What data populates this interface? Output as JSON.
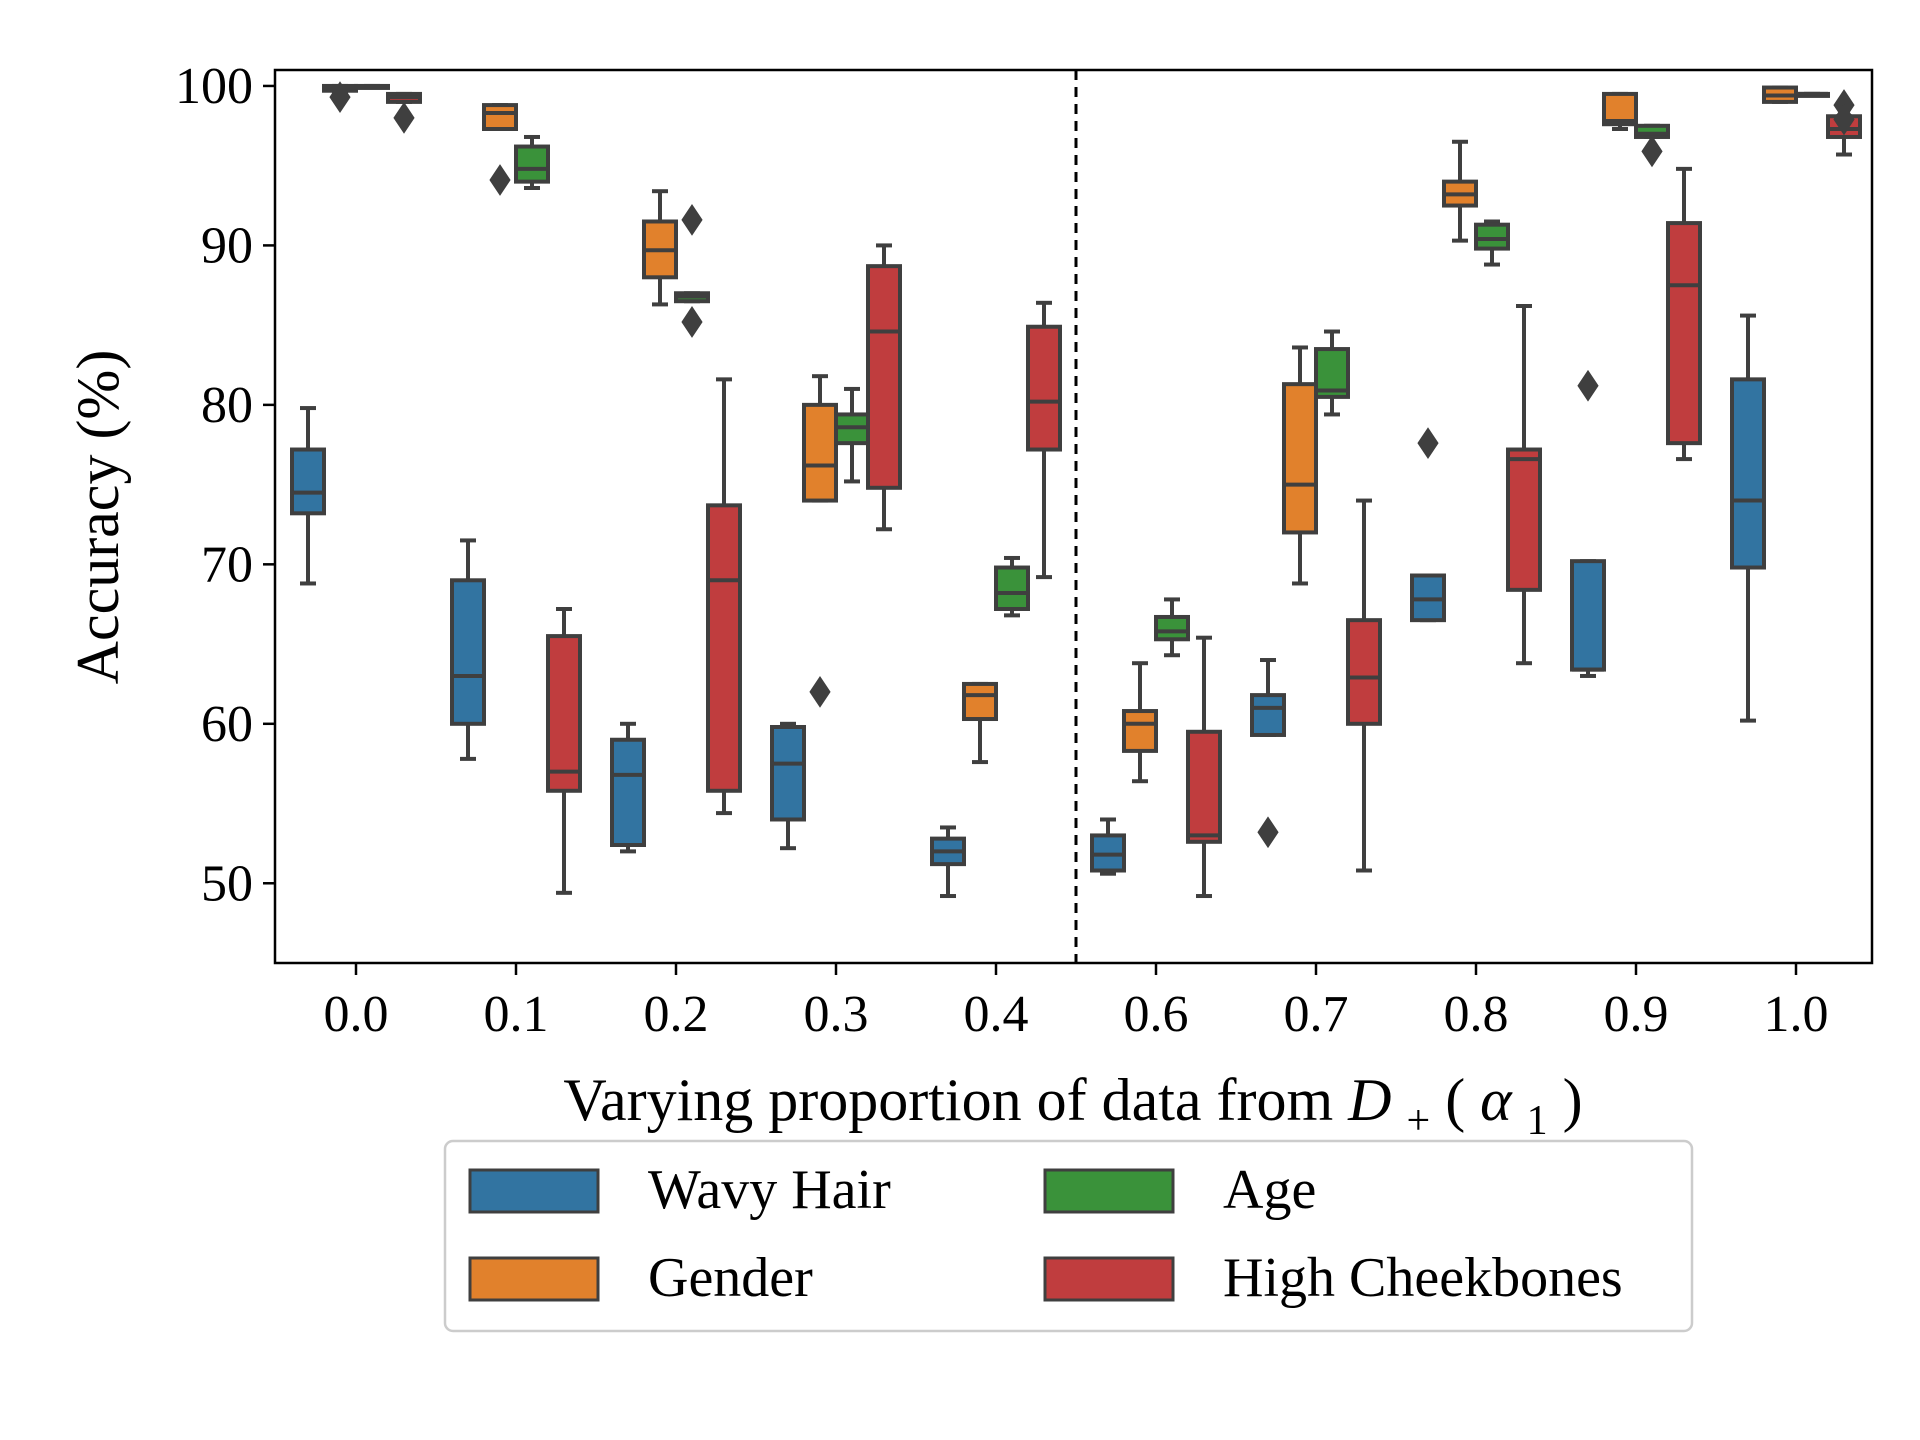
{
  "chart_data": {
    "type": "box",
    "title": "",
    "xlabel": "Varying proportion of data from",
    "xlabel_symbol": "D",
    "xlabel_symbol_sub": "+",
    "xlabel_param": "α",
    "xlabel_param_sub": "1",
    "ylabel": "Accuracy (%)",
    "ylim": [
      45,
      101
    ],
    "yticks": [
      50,
      60,
      70,
      80,
      90,
      100
    ],
    "categories": [
      "0.0",
      "0.1",
      "0.2",
      "0.3",
      "0.4",
      "0.6",
      "0.7",
      "0.8",
      "0.9",
      "1.0"
    ],
    "divider_between": [
      "0.4",
      "0.6"
    ],
    "grid": false,
    "legend_position": "below",
    "series": [
      {
        "name": "Wavy Hair",
        "color": "#3274a1",
        "boxes": [
          {
            "category": "0.0",
            "whisker_low": 68.8,
            "q1": 73.2,
            "median": 74.5,
            "q3": 77.2,
            "whisker_high": 79.8,
            "outliers": []
          },
          {
            "category": "0.1",
            "whisker_low": 57.8,
            "q1": 60.0,
            "median": 63.0,
            "q3": 69.0,
            "whisker_high": 71.5,
            "outliers": []
          },
          {
            "category": "0.2",
            "whisker_low": 52.0,
            "q1": 52.4,
            "median": 56.8,
            "q3": 59.0,
            "whisker_high": 60.0,
            "outliers": []
          },
          {
            "category": "0.3",
            "whisker_low": 52.2,
            "q1": 54.0,
            "median": 57.5,
            "q3": 59.8,
            "whisker_high": 60.0,
            "outliers": []
          },
          {
            "category": "0.4",
            "whisker_low": 49.2,
            "q1": 51.2,
            "median": 52.0,
            "q3": 52.8,
            "whisker_high": 53.5,
            "outliers": []
          },
          {
            "category": "0.6",
            "whisker_low": 50.6,
            "q1": 50.8,
            "median": 51.8,
            "q3": 53.0,
            "whisker_high": 54.0,
            "outliers": []
          },
          {
            "category": "0.7",
            "whisker_low": 59.3,
            "q1": 59.3,
            "median": 61.0,
            "q3": 61.8,
            "whisker_high": 64.0,
            "outliers": [
              53.2
            ]
          },
          {
            "category": "0.8",
            "whisker_low": 66.5,
            "q1": 66.5,
            "median": 67.8,
            "q3": 69.3,
            "whisker_high": 69.3,
            "outliers": [
              77.6
            ]
          },
          {
            "category": "0.9",
            "whisker_low": 63.0,
            "q1": 63.4,
            "median": 63.4,
            "q3": 70.2,
            "whisker_high": 70.2,
            "outliers": [
              81.2
            ]
          },
          {
            "category": "1.0",
            "whisker_low": 60.2,
            "q1": 69.8,
            "median": 74.0,
            "q3": 81.6,
            "whisker_high": 85.6,
            "outliers": []
          }
        ]
      },
      {
        "name": "Gender",
        "color": "#e1812c",
        "boxes": [
          {
            "category": "0.0",
            "whisker_low": 99.6,
            "q1": 99.7,
            "median": 99.9,
            "q3": 100.0,
            "whisker_high": 100.0,
            "outliers": [
              99.3
            ]
          },
          {
            "category": "0.1",
            "whisker_low": 97.3,
            "q1": 97.3,
            "median": 98.3,
            "q3": 98.8,
            "whisker_high": 98.8,
            "outliers": [
              94.1
            ]
          },
          {
            "category": "0.2",
            "whisker_low": 86.3,
            "q1": 88.0,
            "median": 89.7,
            "q3": 91.5,
            "whisker_high": 93.4,
            "outliers": []
          },
          {
            "category": "0.3",
            "whisker_low": 74.0,
            "q1": 74.0,
            "median": 76.2,
            "q3": 80.0,
            "whisker_high": 81.8,
            "outliers": [
              62.0
            ]
          },
          {
            "category": "0.4",
            "whisker_low": 57.6,
            "q1": 60.3,
            "median": 61.8,
            "q3": 62.5,
            "whisker_high": 62.5,
            "outliers": []
          },
          {
            "category": "0.6",
            "whisker_low": 56.4,
            "q1": 58.3,
            "median": 60.0,
            "q3": 60.8,
            "whisker_high": 63.8,
            "outliers": []
          },
          {
            "category": "0.7",
            "whisker_low": 68.8,
            "q1": 72.0,
            "median": 75.0,
            "q3": 81.3,
            "whisker_high": 83.6,
            "outliers": []
          },
          {
            "category": "0.8",
            "whisker_low": 90.3,
            "q1": 92.5,
            "median": 93.2,
            "q3": 94.0,
            "whisker_high": 96.5,
            "outliers": []
          },
          {
            "category": "0.9",
            "whisker_low": 97.3,
            "q1": 97.6,
            "median": 97.8,
            "q3": 99.5,
            "whisker_high": 99.5,
            "outliers": []
          },
          {
            "category": "1.0",
            "whisker_low": 99.0,
            "q1": 99.0,
            "median": 99.4,
            "q3": 99.9,
            "whisker_high": 99.9,
            "outliers": []
          }
        ]
      },
      {
        "name": "Age",
        "color": "#3a923a",
        "boxes": [
          {
            "category": "0.0",
            "whisker_low": 99.9,
            "q1": 99.9,
            "median": 100.0,
            "q3": 100.0,
            "whisker_high": 100.0,
            "outliers": []
          },
          {
            "category": "0.1",
            "whisker_low": 93.6,
            "q1": 94.0,
            "median": 94.8,
            "q3": 96.2,
            "whisker_high": 96.8,
            "outliers": []
          },
          {
            "category": "0.2",
            "whisker_low": 86.5,
            "q1": 86.5,
            "median": 86.8,
            "q3": 87.0,
            "whisker_high": 87.0,
            "outliers": [
              91.6,
              85.2
            ]
          },
          {
            "category": "0.3",
            "whisker_low": 75.2,
            "q1": 77.6,
            "median": 78.6,
            "q3": 79.4,
            "whisker_high": 81.0,
            "outliers": []
          },
          {
            "category": "0.4",
            "whisker_low": 66.8,
            "q1": 67.2,
            "median": 68.2,
            "q3": 69.8,
            "whisker_high": 70.4,
            "outliers": []
          },
          {
            "category": "0.6",
            "whisker_low": 64.3,
            "q1": 65.3,
            "median": 65.8,
            "q3": 66.7,
            "whisker_high": 67.8,
            "outliers": []
          },
          {
            "category": "0.7",
            "whisker_low": 79.4,
            "q1": 80.5,
            "median": 80.9,
            "q3": 83.5,
            "whisker_high": 84.6,
            "outliers": []
          },
          {
            "category": "0.8",
            "whisker_low": 88.8,
            "q1": 89.8,
            "median": 90.4,
            "q3": 91.3,
            "whisker_high": 91.5,
            "outliers": []
          },
          {
            "category": "0.9",
            "whisker_low": 96.8,
            "q1": 96.8,
            "median": 97.0,
            "q3": 97.5,
            "whisker_high": 97.5,
            "outliers": [
              95.9
            ]
          },
          {
            "category": "1.0",
            "whisker_low": 99.5,
            "q1": 99.5,
            "median": 99.5,
            "q3": 99.5,
            "whisker_high": 99.5,
            "outliers": []
          }
        ]
      },
      {
        "name": "High Cheekbones",
        "color": "#c03d3e",
        "boxes": [
          {
            "category": "0.0",
            "whisker_low": 99.0,
            "q1": 99.0,
            "median": 99.3,
            "q3": 99.5,
            "whisker_high": 99.5,
            "outliers": [
              98.0
            ]
          },
          {
            "category": "0.1",
            "whisker_low": 49.4,
            "q1": 55.8,
            "median": 57.0,
            "q3": 65.5,
            "whisker_high": 67.2,
            "outliers": []
          },
          {
            "category": "0.2",
            "whisker_low": 54.4,
            "q1": 55.8,
            "median": 69.0,
            "q3": 73.7,
            "whisker_high": 81.6,
            "outliers": []
          },
          {
            "category": "0.3",
            "whisker_low": 72.2,
            "q1": 74.8,
            "median": 84.6,
            "q3": 88.7,
            "whisker_high": 90.0,
            "outliers": []
          },
          {
            "category": "0.4",
            "whisker_low": 69.2,
            "q1": 77.2,
            "median": 80.2,
            "q3": 84.9,
            "whisker_high": 86.4,
            "outliers": []
          },
          {
            "category": "0.6",
            "whisker_low": 49.2,
            "q1": 52.6,
            "median": 53.0,
            "q3": 59.5,
            "whisker_high": 65.4,
            "outliers": []
          },
          {
            "category": "0.7",
            "whisker_low": 50.8,
            "q1": 60.0,
            "median": 62.9,
            "q3": 66.5,
            "whisker_high": 74.0,
            "outliers": []
          },
          {
            "category": "0.8",
            "whisker_low": 63.8,
            "q1": 68.4,
            "median": 76.6,
            "q3": 77.2,
            "whisker_high": 86.2,
            "outliers": []
          },
          {
            "category": "0.9",
            "whisker_low": 76.6,
            "q1": 77.6,
            "median": 87.5,
            "q3": 91.4,
            "whisker_high": 94.8,
            "outliers": []
          },
          {
            "category": "1.0",
            "whisker_low": 95.7,
            "q1": 96.8,
            "median": 97.3,
            "q3": 98.1,
            "whisker_high": 98.1,
            "outliers": [
              98.8,
              97.9
            ]
          }
        ]
      }
    ]
  }
}
